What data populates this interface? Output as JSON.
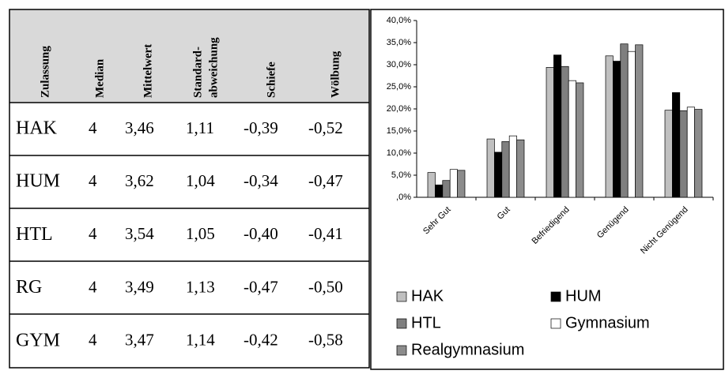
{
  "table": {
    "headers": [
      "Zulassung",
      "Median",
      "Mittelwert",
      [
        "Standard-",
        "abweichung"
      ],
      "Schiefe",
      "Wölbung"
    ],
    "rows": [
      [
        "HAK",
        "4",
        "3,46",
        "1,11",
        "-0,39",
        "-0,52"
      ],
      [
        "HUM",
        "4",
        "3,62",
        "1,04",
        "-0,34",
        "-0,47"
      ],
      [
        "HTL",
        "4",
        "3,54",
        "1,05",
        "-0,40",
        "-0,41"
      ],
      [
        "RG",
        "4",
        "3,49",
        "1,13",
        "-0,47",
        "-0,50"
      ],
      [
        "GYM",
        "4",
        "3,47",
        "1,14",
        "-0,42",
        "-0,58"
      ]
    ]
  },
  "chart_data": {
    "type": "bar",
    "categories": [
      "Sehr Gut",
      "Gut",
      "Befriedigend",
      "Genügend",
      "Nicht Genügend"
    ],
    "series": [
      {
        "name": "HAK",
        "color": "#c0c0c0",
        "values": [
          5.6,
          13.2,
          29.4,
          32.0,
          19.7
        ]
      },
      {
        "name": "HUM",
        "color": "#000000",
        "values": [
          2.8,
          10.2,
          32.2,
          30.8,
          23.7
        ]
      },
      {
        "name": "HTL",
        "color": "#7f7f7f",
        "values": [
          3.8,
          12.6,
          29.6,
          34.7,
          19.6
        ]
      },
      {
        "name": "Gymnasium",
        "color": "#ffffff",
        "values": [
          6.3,
          13.9,
          26.4,
          33.0,
          20.4
        ]
      },
      {
        "name": "Realgymnasium",
        "color": "#8c8c8c",
        "values": [
          6.1,
          13.0,
          25.9,
          34.5,
          19.9
        ]
      }
    ],
    "ylim": [
      0,
      40
    ],
    "yticks": [
      {
        "value": 0,
        "label": ",0%"
      },
      {
        "value": 5,
        "label": "5,0%"
      },
      {
        "value": 10,
        "label": "10,0%"
      },
      {
        "value": 15,
        "label": "15,0%"
      },
      {
        "value": 20,
        "label": "20,0%"
      },
      {
        "value": 25,
        "label": "25,0%"
      },
      {
        "value": 30,
        "label": "30,0%"
      },
      {
        "value": 35,
        "label": "35,0%"
      },
      {
        "value": 40,
        "label": "40,0%"
      }
    ]
  }
}
